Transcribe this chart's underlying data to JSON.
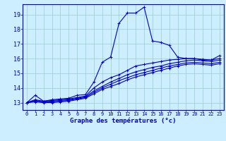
{
  "xlabel": "Graphe des températures (°c)",
  "bg_color": "#cceeff",
  "line_color": "#0000cc",
  "grid_color": "#99cccc",
  "xlim": [
    -0.5,
    23.5
  ],
  "ylim": [
    12.5,
    19.7
  ],
  "xticks": [
    0,
    1,
    2,
    3,
    4,
    5,
    6,
    7,
    8,
    9,
    10,
    11,
    12,
    13,
    14,
    15,
    16,
    17,
    18,
    19,
    20,
    21,
    22,
    23
  ],
  "yticks": [
    13,
    14,
    15,
    16,
    17,
    18,
    19
  ],
  "series": [
    [
      13.0,
      13.5,
      13.1,
      13.2,
      13.25,
      13.3,
      13.5,
      13.55,
      14.4,
      15.75,
      16.1,
      18.4,
      19.1,
      19.1,
      19.5,
      17.2,
      17.1,
      16.9,
      16.1,
      16.0,
      16.0,
      15.9,
      15.9,
      16.2
    ],
    [
      13.0,
      13.2,
      13.1,
      13.15,
      13.2,
      13.25,
      13.35,
      13.45,
      14.0,
      14.4,
      14.7,
      14.9,
      15.2,
      15.5,
      15.6,
      15.7,
      15.8,
      15.9,
      15.95,
      16.0,
      16.0,
      15.95,
      15.9,
      16.0
    ],
    [
      13.0,
      13.15,
      13.05,
      13.1,
      13.15,
      13.2,
      13.3,
      13.4,
      13.8,
      14.1,
      14.4,
      14.65,
      14.9,
      15.1,
      15.25,
      15.4,
      15.5,
      15.65,
      15.75,
      15.85,
      15.9,
      15.85,
      15.8,
      15.9
    ],
    [
      13.0,
      13.1,
      13.05,
      13.05,
      13.1,
      13.15,
      13.25,
      13.35,
      13.7,
      14.0,
      14.25,
      14.5,
      14.7,
      14.9,
      15.05,
      15.2,
      15.35,
      15.5,
      15.6,
      15.7,
      15.75,
      15.7,
      15.65,
      15.75
    ],
    [
      13.0,
      13.05,
      13.0,
      13.0,
      13.05,
      13.1,
      13.2,
      13.3,
      13.6,
      13.9,
      14.1,
      14.3,
      14.55,
      14.75,
      14.9,
      15.05,
      15.2,
      15.35,
      15.5,
      15.6,
      15.65,
      15.6,
      15.55,
      15.65
    ]
  ],
  "marker": "+",
  "markersize": 3,
  "linewidth": 0.8
}
